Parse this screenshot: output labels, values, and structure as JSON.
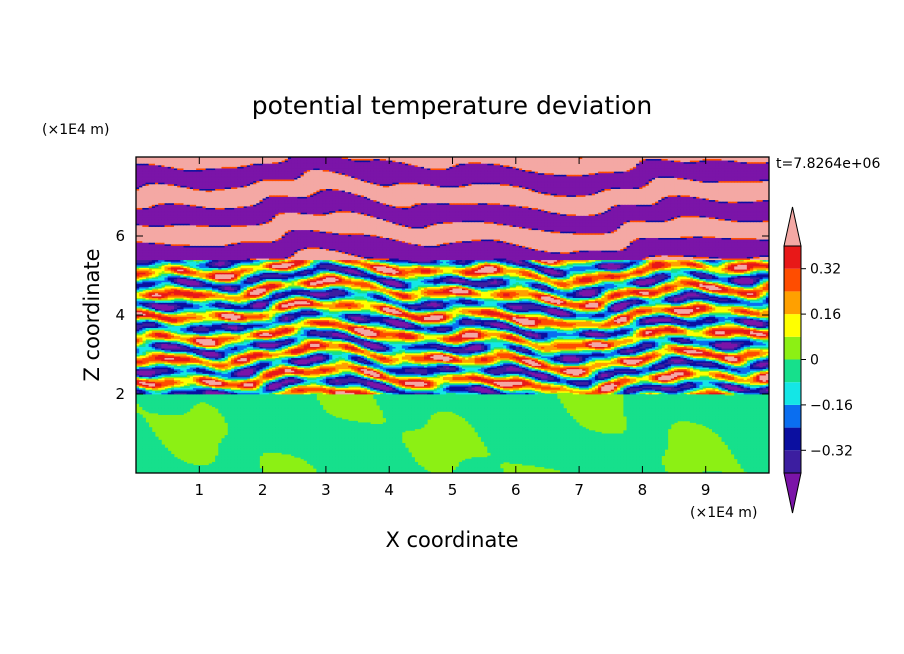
{
  "chart_data": {
    "type": "heatmap",
    "title": "potential temperature deviation",
    "xlabel": "X coordinate",
    "ylabel": "Z coordinate",
    "x_unit": "(×1E4 m)",
    "y_unit": "(×1E4 m)",
    "time_label": "t=7.8264e+06",
    "xlim": [
      0,
      10
    ],
    "ylim": [
      0,
      8
    ],
    "x_ticks": [
      1,
      2,
      3,
      4,
      5,
      6,
      7,
      8,
      9
    ],
    "y_ticks": [
      2,
      4,
      6
    ],
    "colorbar": {
      "tick_labels": [
        "0.32",
        "0.16",
        "0",
        "−0.16",
        "−0.32"
      ],
      "tick_values": [
        0.32,
        0.16,
        0,
        -0.16,
        -0.32
      ],
      "levels": [
        -0.4,
        -0.32,
        -0.24,
        -0.16,
        -0.08,
        0,
        0.08,
        0.16,
        0.24,
        0.32,
        0.4
      ],
      "colors": [
        "#7b14a8",
        "#3c1ea0",
        "#0b0fa0",
        "#0a6ef0",
        "#14e6e6",
        "#16e08c",
        "#8cf014",
        "#ffff00",
        "#ffa000",
        "#ff4d00",
        "#e81818",
        "#f4a8a4"
      ]
    },
    "regions": [
      {
        "z_range": [
          0,
          2
        ],
        "pattern": "near-neutral, values about -0.04 to 0.08"
      },
      {
        "z_range": [
          2,
          5.5
        ],
        "pattern": "turbulent layered mixing, values -0.4 to 0.4"
      },
      {
        "z_range": [
          5.5,
          8
        ],
        "pattern": "alternating horizontal bands, values above 0.36 and below -0.36"
      }
    ]
  }
}
